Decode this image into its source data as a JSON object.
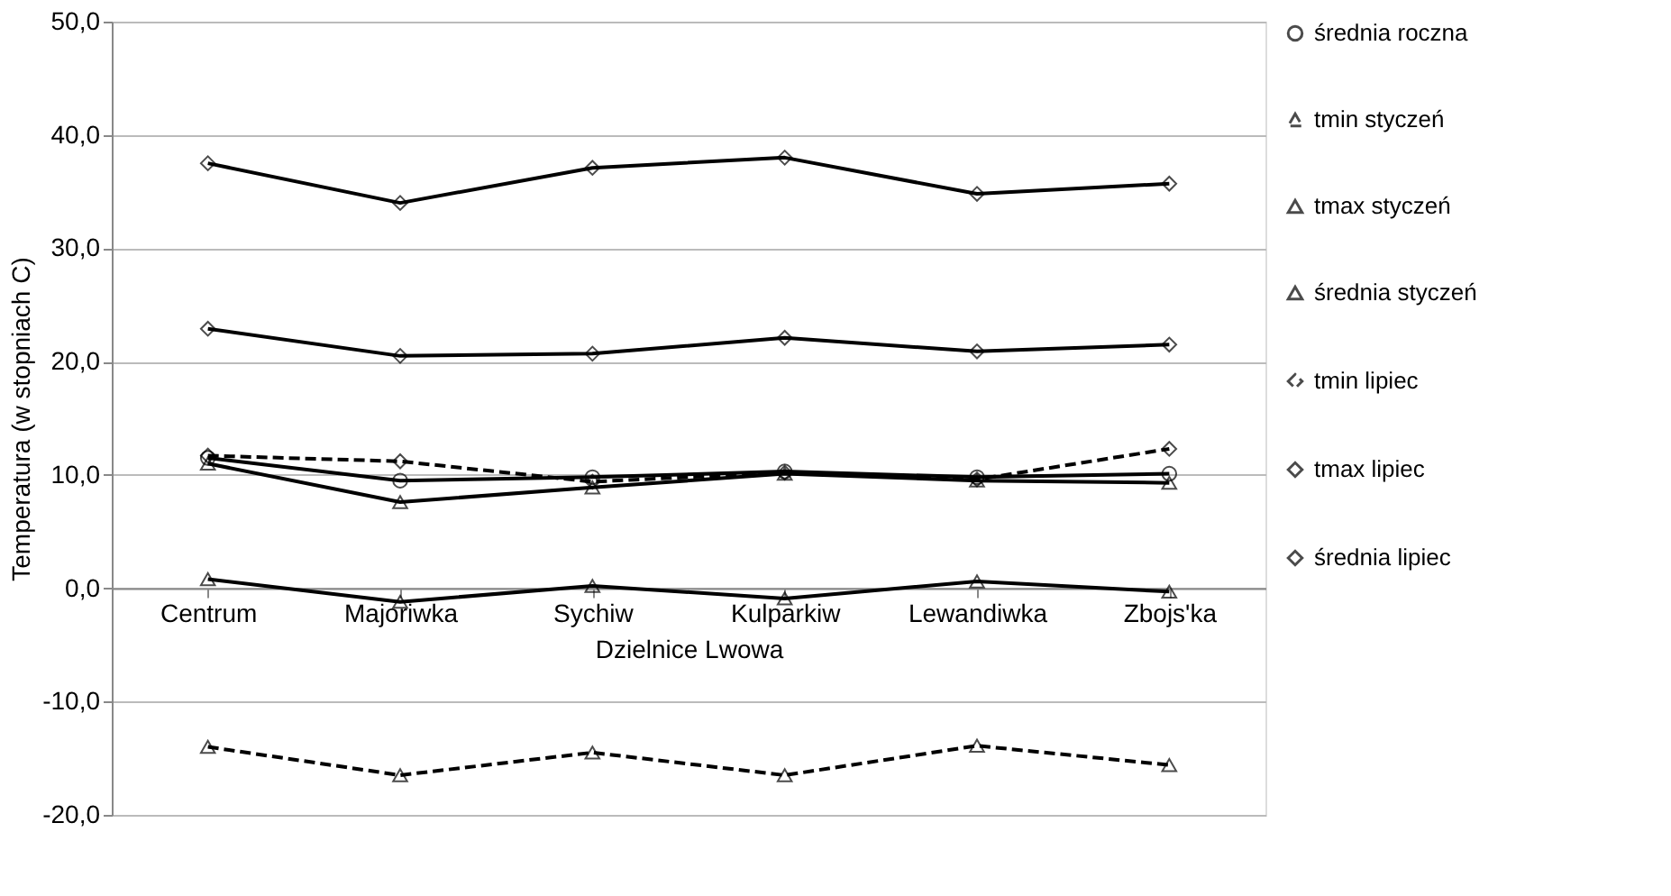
{
  "chart_data": {
    "type": "line",
    "xlabel": "Dzielnice Lwowa",
    "ylabel": "Temperatura  (w stopniach C)",
    "categories": [
      "Centrum",
      "Majoriwka",
      "Sychiw",
      "Kulparkiw",
      "Lewandiwka",
      "Zbojs'ka"
    ],
    "ylim": [
      -20,
      50
    ],
    "yticks": [
      {
        "value": -20,
        "label": "-20,0"
      },
      {
        "value": -10,
        "label": "-10,0"
      },
      {
        "value": 0,
        "label": "0,0"
      },
      {
        "value": 10,
        "label": "10,0"
      },
      {
        "value": 20,
        "label": "20,0"
      },
      {
        "value": 30,
        "label": "30,0"
      },
      {
        "value": 40,
        "label": "40,0"
      },
      {
        "value": 50,
        "label": "50,0"
      }
    ],
    "grid": "y",
    "legend": "right",
    "series": [
      {
        "name": "średnia roczna",
        "color": "#000000",
        "marker": "circle",
        "line_style": "solid",
        "values": [
          11.5,
          9.5,
          9.8,
          10.3,
          9.8,
          10.1
        ]
      },
      {
        "name": "tmin styczeń",
        "color": "#000000",
        "marker": "triangle",
        "line_style": "dashed",
        "values": [
          -14.0,
          -16.5,
          -14.5,
          -16.5,
          -13.9,
          -15.6
        ]
      },
      {
        "name": "tmax styczeń",
        "color": "#000000",
        "marker": "triangle",
        "line_style": "solid",
        "values": [
          11.0,
          7.6,
          8.9,
          10.1,
          9.5,
          9.3
        ]
      },
      {
        "name": "średnia styczeń",
        "color": "#000000",
        "marker": "triangle",
        "line_style": "solid",
        "values": [
          0.8,
          -1.2,
          0.2,
          -0.9,
          0.6,
          -0.3
        ]
      },
      {
        "name": "tmin lipiec",
        "color": "#000000",
        "marker": "diamond",
        "line_style": "dashed",
        "values": [
          11.7,
          11.2,
          9.4,
          10.2,
          9.6,
          12.3
        ]
      },
      {
        "name": "tmax lipiec",
        "color": "#000000",
        "marker": "diamond",
        "line_style": "solid",
        "values": [
          37.5,
          34.0,
          37.1,
          38.0,
          34.8,
          35.7
        ]
      },
      {
        "name": "średnia lipiec",
        "color": "#000000",
        "marker": "diamond",
        "line_style": "solid",
        "values": [
          22.9,
          20.5,
          20.7,
          22.1,
          20.9,
          21.5
        ]
      }
    ]
  }
}
